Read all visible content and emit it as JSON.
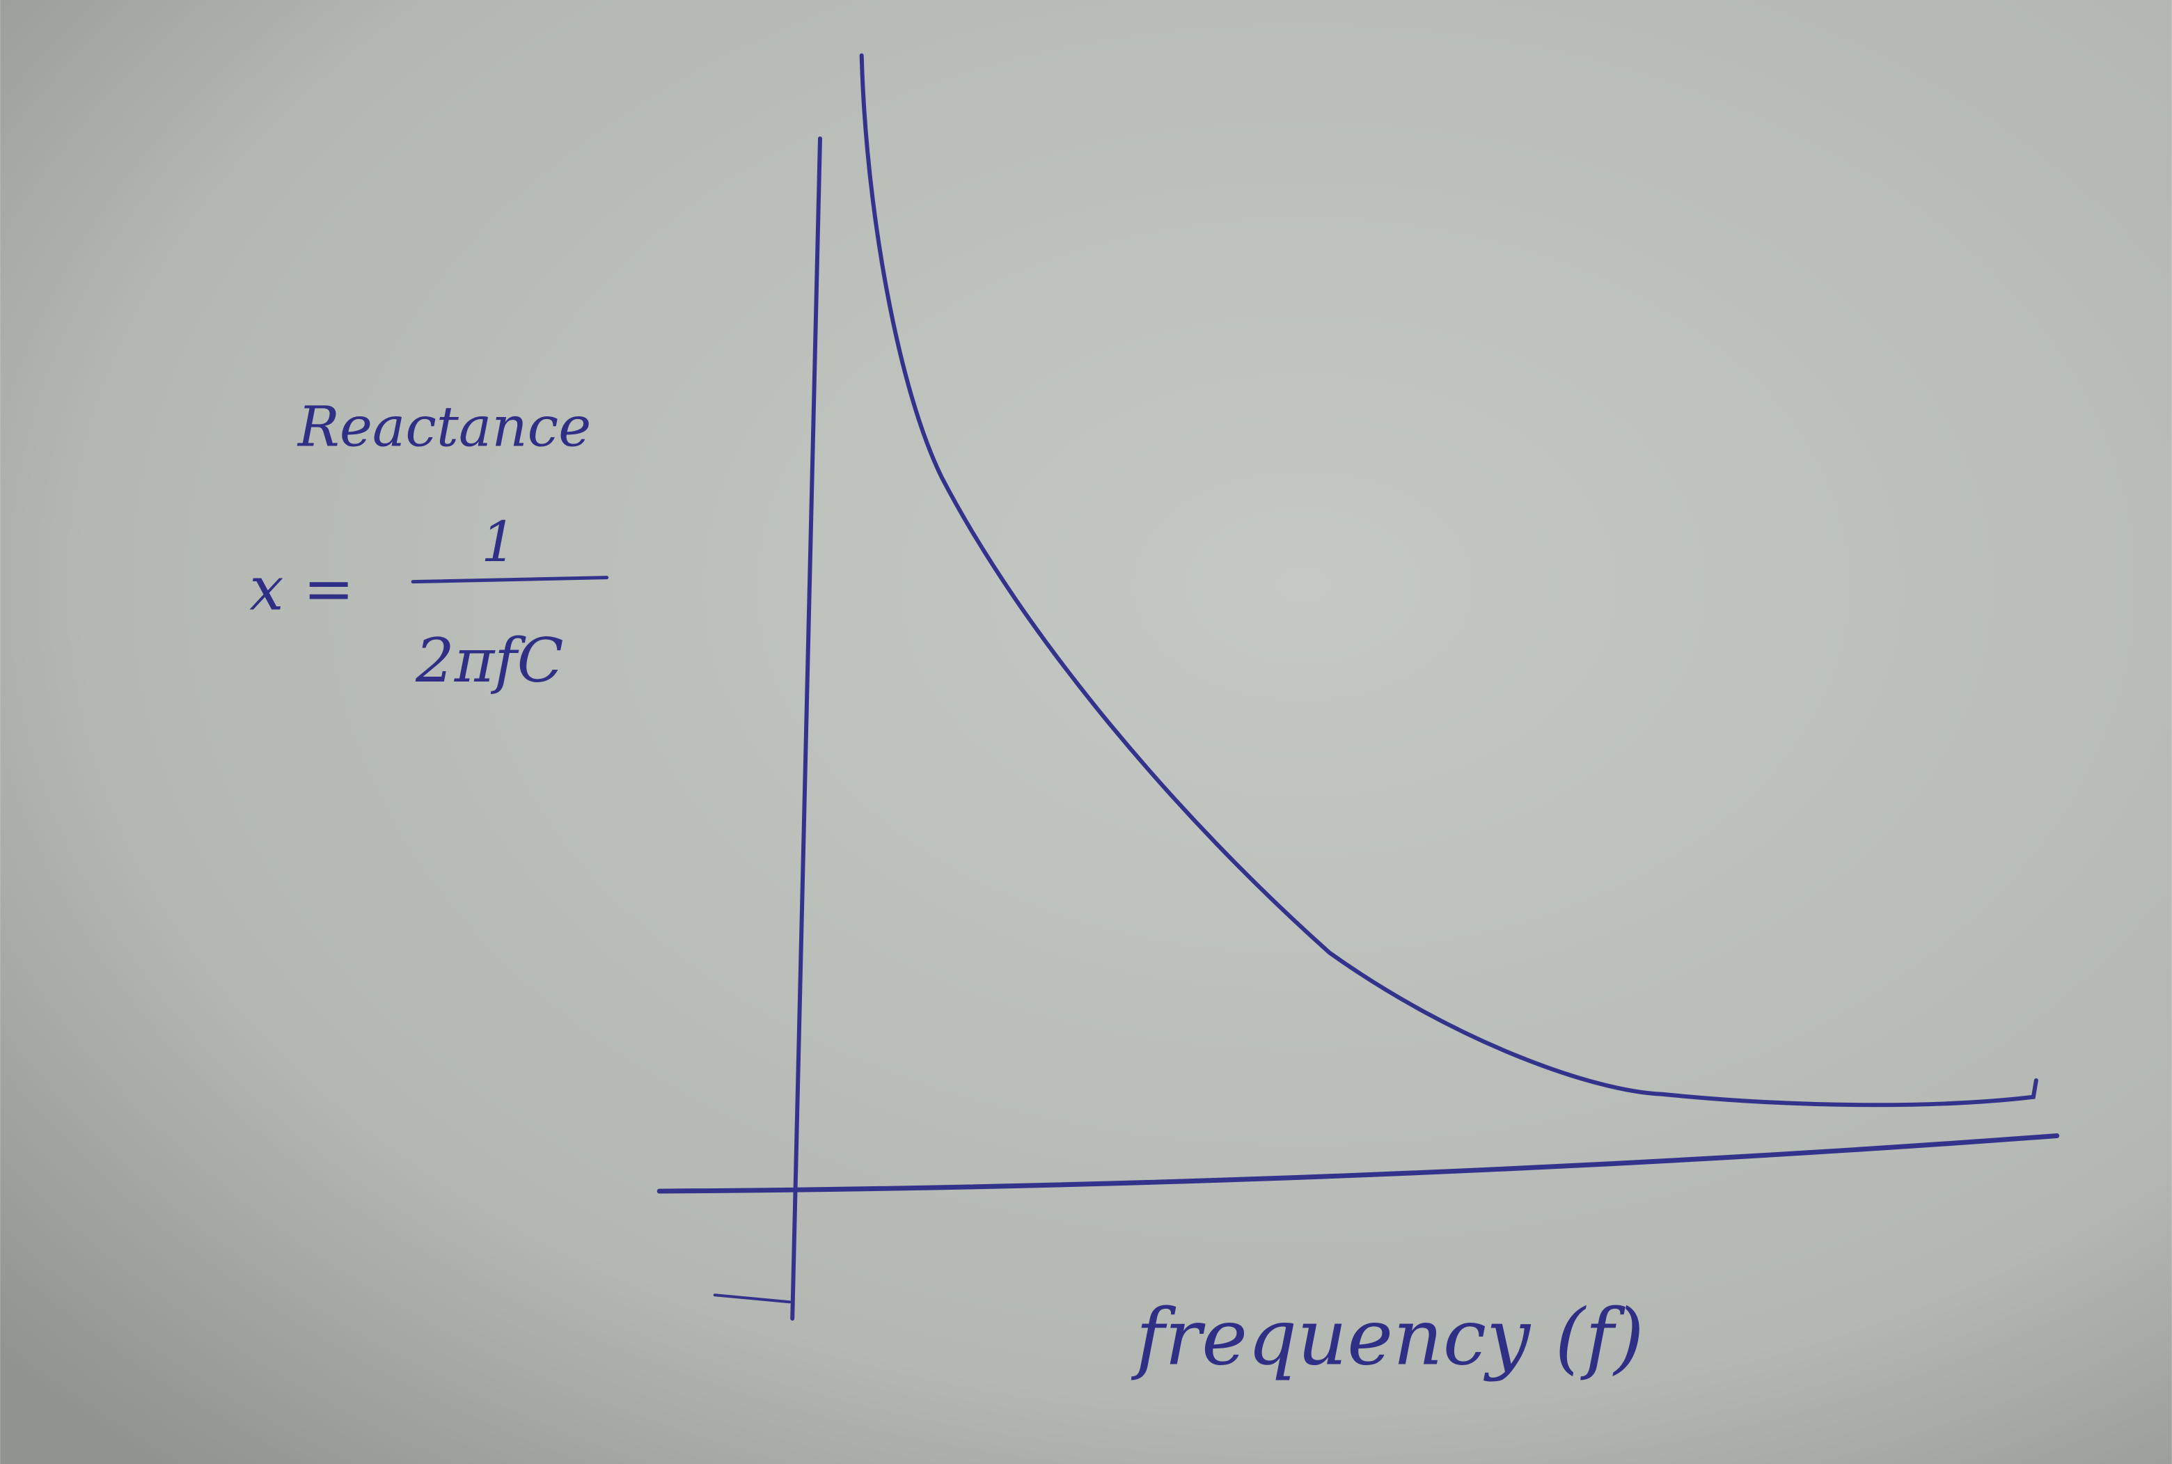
{
  "y_axis_label": "Reactance",
  "formula": {
    "lhs": "x =",
    "numerator": "1",
    "denominator": "2πfC"
  },
  "x_axis_label": "frequency (f)"
}
